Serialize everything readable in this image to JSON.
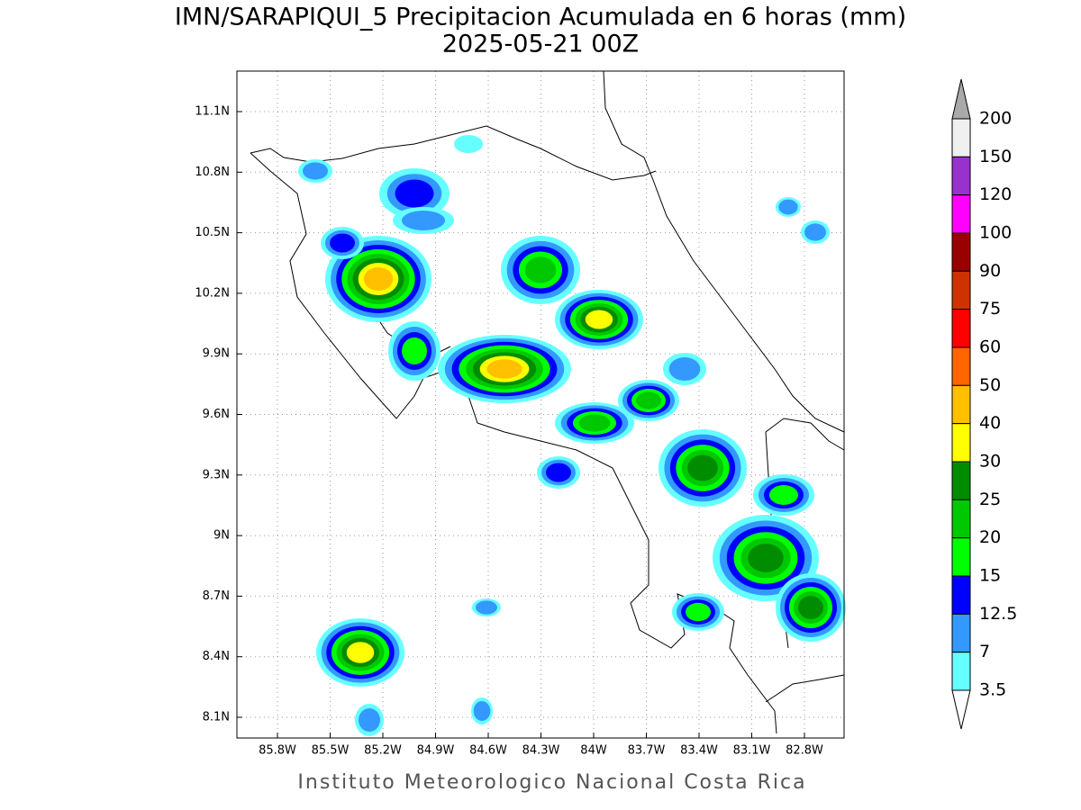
{
  "title": "IMN/SARAPIQUI_5 Precipitacion Acumulada en 6 horas (mm)",
  "subtitle": "2025-05-21 00Z",
  "map": {
    "lon_labels": [
      "85.8W",
      "85.5W",
      "85.2W",
      "84.9W",
      "84.6W",
      "84.3W",
      "84W",
      "83.7W",
      "83.4W",
      "83.1W",
      "82.8W"
    ],
    "lat_labels": [
      "11.1N",
      "10.8N",
      "10.5N",
      "10.2N",
      "9.9N",
      "9.6N",
      "9.3N",
      "9N",
      "8.7N",
      "8.4N",
      "8.1N"
    ]
  },
  "colorbar": {
    "levels": [
      200,
      150,
      120,
      100,
      90,
      75,
      60,
      50,
      40,
      30,
      25,
      20,
      15,
      12.5,
      7,
      3.5
    ],
    "colors": [
      "#f0f0f0",
      "#9932cc",
      "#ff00ff",
      "#990000",
      "#cc3300",
      "#ff0000",
      "#ff6600",
      "#ffc000",
      "#ffff00",
      "#008c00",
      "#00c800",
      "#00ff00",
      "#0000ff",
      "#3399ff",
      "#66ffff"
    ],
    "above_color": "#a9a9a9",
    "below_color": "#ffffff"
  },
  "footer": "Instituto Meteorologico Nacional Costa Rica"
}
